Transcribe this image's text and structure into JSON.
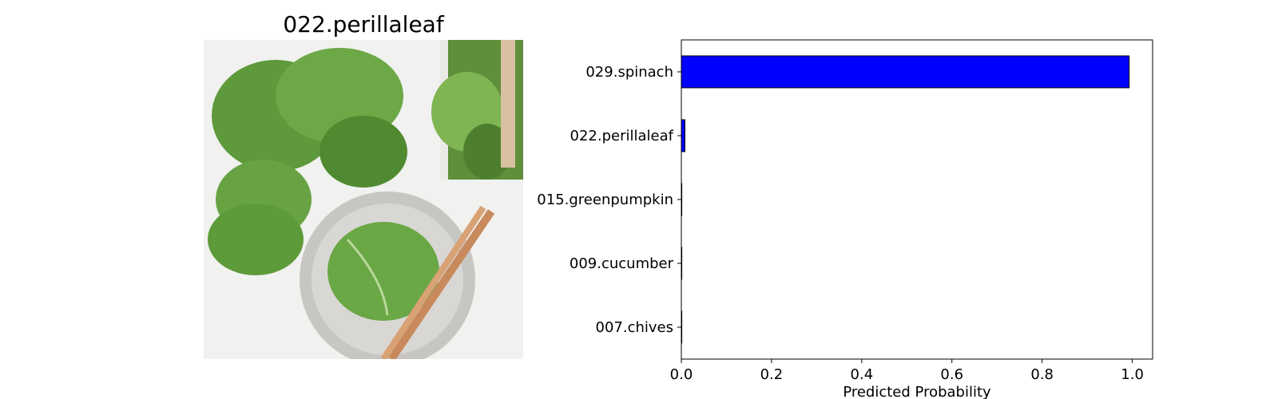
{
  "image_panel": {
    "title": "022.perillaleaf",
    "photo_subject": "perilla leaves on a plate with wooden chopsticks"
  },
  "colors": {
    "bar": "#0000ff",
    "edge": "#000000"
  },
  "chart_data": {
    "type": "bar",
    "orientation": "horizontal",
    "categories": [
      "029.spinach",
      "022.perillaleaf",
      "015.greenpumpkin",
      "009.cucumber",
      "007.chives"
    ],
    "values": [
      0.993,
      0.008,
      0.0005,
      0.0005,
      0.0003
    ],
    "xlabel": "Predicted Probability",
    "ylabel": "",
    "xlim": [
      0,
      1.045
    ],
    "xticks": [
      0.0,
      0.2,
      0.4,
      0.6,
      0.8,
      1.0
    ],
    "xtick_labels": [
      "0.0",
      "0.2",
      "0.4",
      "0.6",
      "0.8",
      "1.0"
    ],
    "grid": false,
    "legend": "none"
  }
}
